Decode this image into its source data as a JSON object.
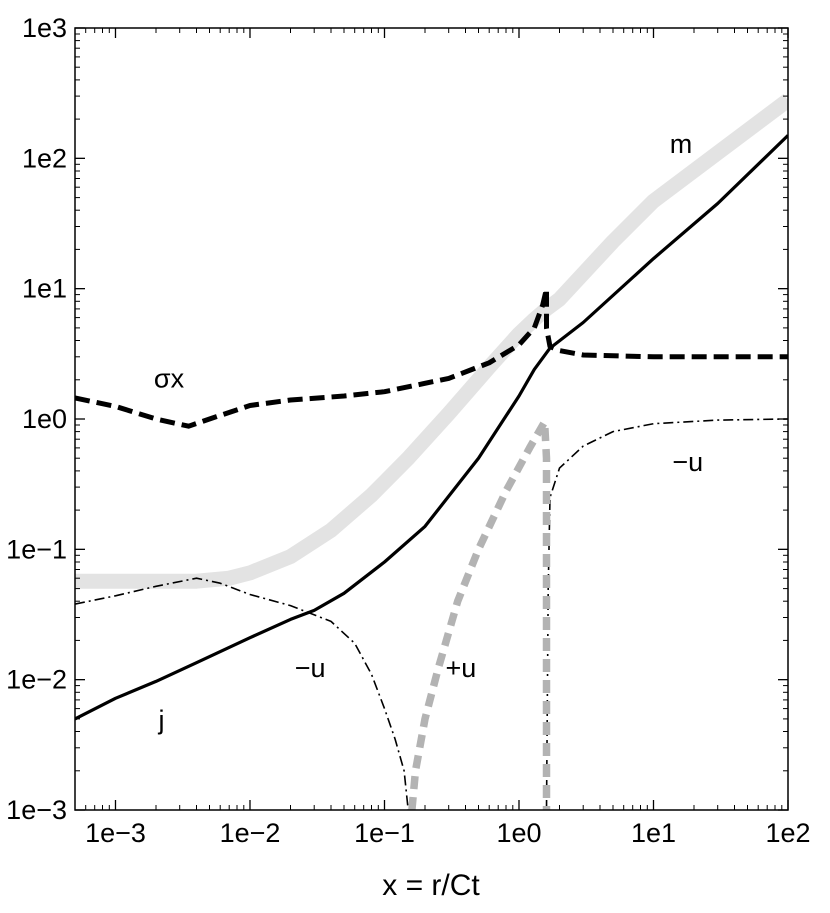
{
  "chart_data": {
    "type": "line",
    "title": "",
    "xlabel": "x = r/Ct",
    "ylabel": "",
    "xscale": "log",
    "yscale": "log",
    "xlim": [
      0.0005,
      100
    ],
    "ylim": [
      0.001,
      1000
    ],
    "grid": false,
    "legend": "none",
    "xticks": [
      {
        "value": 0.001,
        "label": "1e−3"
      },
      {
        "value": 0.01,
        "label": "1e−2"
      },
      {
        "value": 0.1,
        "label": "1e−1"
      },
      {
        "value": 1,
        "label": "1e0"
      },
      {
        "value": 10,
        "label": "1e1"
      },
      {
        "value": 100,
        "label": "1e2"
      }
    ],
    "yticks": [
      {
        "value": 0.001,
        "label": "1e−3"
      },
      {
        "value": 0.01,
        "label": "1e−2"
      },
      {
        "value": 0.1,
        "label": "1e−1"
      },
      {
        "value": 1,
        "label": "1e0"
      },
      {
        "value": 10,
        "label": "1e1"
      },
      {
        "value": 100,
        "label": "1e2"
      },
      {
        "value": 1000,
        "label": "1e3"
      }
    ],
    "series": [
      {
        "key": "m",
        "style": "thick-light",
        "color": "#e3e3e3",
        "x": [
          0.0005,
          0.001,
          0.002,
          0.004,
          0.007,
          0.01,
          0.02,
          0.04,
          0.08,
          0.15,
          0.3,
          0.6,
          1.0,
          1.3,
          1.6,
          2.0,
          5,
          10,
          30,
          100
        ],
        "y": [
          0.057,
          0.057,
          0.057,
          0.057,
          0.06,
          0.066,
          0.088,
          0.14,
          0.26,
          0.5,
          1.1,
          2.5,
          4.5,
          5.8,
          7.0,
          8.3,
          23,
          47,
          110,
          280
        ]
      },
      {
        "key": "j",
        "style": "solid",
        "color": "#000000",
        "x": [
          0.0005,
          0.001,
          0.002,
          0.004,
          0.01,
          0.02,
          0.03,
          0.05,
          0.1,
          0.2,
          0.5,
          1.0,
          1.3,
          1.7,
          3,
          10,
          30,
          100
        ],
        "y": [
          0.005,
          0.0072,
          0.0097,
          0.0135,
          0.021,
          0.029,
          0.034,
          0.046,
          0.08,
          0.15,
          0.5,
          1.5,
          2.4,
          3.5,
          5.5,
          17,
          45,
          150
        ]
      },
      {
        "key": "sigma_x",
        "style": "thick-dashed",
        "color": "#000000",
        "x": [
          0.0005,
          0.001,
          0.002,
          0.0035,
          0.005,
          0.01,
          0.02,
          0.05,
          0.1,
          0.3,
          0.6,
          1.0,
          1.3,
          1.5,
          1.6,
          1.6,
          1.7,
          2.0,
          3,
          10,
          30,
          100
        ],
        "y": [
          1.45,
          1.25,
          1.0,
          0.88,
          1.0,
          1.27,
          1.4,
          1.5,
          1.62,
          2.05,
          2.7,
          3.7,
          5.0,
          7.5,
          10,
          5.0,
          3.6,
          3.35,
          3.1,
          3.0,
          3.0,
          3.0
        ]
      },
      {
        "key": "minus_u",
        "style": "dash-dot",
        "color": "#000000",
        "segments": [
          {
            "x": [
              0.0005,
              0.001,
              0.002,
              0.004,
              0.006,
              0.01,
              0.02,
              0.04,
              0.06,
              0.08,
              0.1,
              0.12,
              0.14,
              0.15
            ],
            "y": [
              0.038,
              0.044,
              0.052,
              0.06,
              0.055,
              0.045,
              0.037,
              0.028,
              0.019,
              0.011,
              0.006,
              0.0035,
              0.002,
              0.001
            ]
          },
          {
            "x": [
              1.6,
              1.65,
              1.7,
              2.0,
              3,
              5,
              10,
              30,
              100
            ],
            "y": [
              0.001,
              0.05,
              0.25,
              0.42,
              0.62,
              0.8,
              0.92,
              0.98,
              1.0
            ]
          }
        ]
      },
      {
        "key": "plus_u",
        "style": "thick-dashed-gray",
        "color": "#b3b3b3",
        "x": [
          0.16,
          0.17,
          0.2,
          0.25,
          0.35,
          0.5,
          0.8,
          1.2,
          1.55,
          1.6,
          1.6
        ],
        "y": [
          0.001,
          0.002,
          0.005,
          0.012,
          0.04,
          0.1,
          0.28,
          0.6,
          0.95,
          0.5,
          0.001
        ]
      }
    ],
    "annotations": [
      {
        "text": "m",
        "x": 16,
        "y": 110
      },
      {
        "text": "σx",
        "x": 0.0025,
        "y": 1.75
      },
      {
        "text": "−u",
        "x": 18,
        "y": 0.4
      },
      {
        "text": "−u",
        "x": 0.028,
        "y": 0.0105
      },
      {
        "text": "+u",
        "x": 0.37,
        "y": 0.0105
      },
      {
        "text": "j",
        "x": 0.0022,
        "y": 0.0042
      }
    ]
  }
}
